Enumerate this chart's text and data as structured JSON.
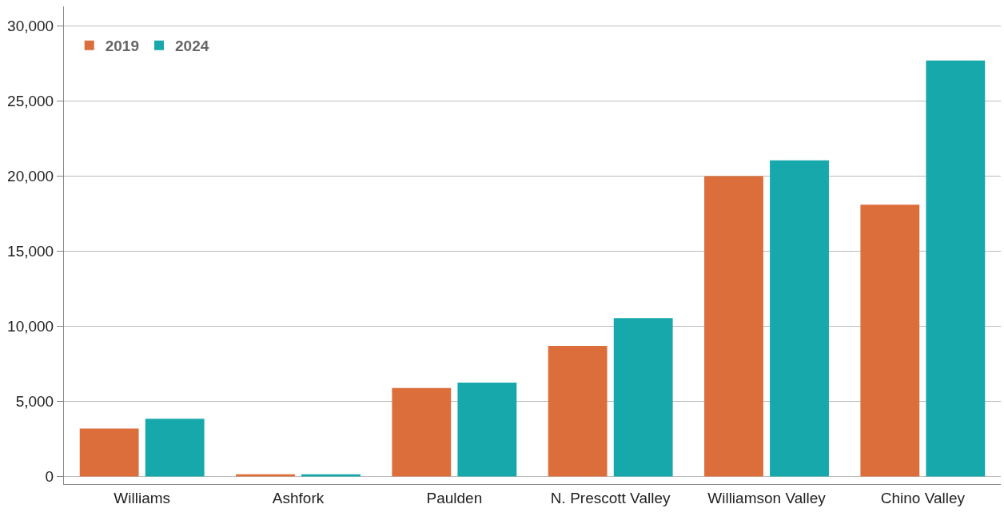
{
  "chart_data": {
    "type": "bar",
    "categories": [
      "Williams",
      "Ashfork",
      "Paulden",
      "N. Prescott Valley",
      "Williamson Valley",
      "Chino Valley"
    ],
    "series": [
      {
        "name": "2019",
        "color": "#dc6e3c",
        "values": [
          3200,
          150,
          5900,
          8700,
          20000,
          18100
        ]
      },
      {
        "name": "2024",
        "color": "#17a8ab",
        "values": [
          3850,
          150,
          6250,
          10550,
          21050,
          27700
        ]
      }
    ],
    "ylim": [
      -500,
      31300
    ],
    "yticks": [
      {
        "value": 0,
        "label": "0"
      },
      {
        "value": 5000,
        "label": "5,000"
      },
      {
        "value": 10000,
        "label": "10,000"
      },
      {
        "value": 15000,
        "label": "15,000"
      },
      {
        "value": 20000,
        "label": "20,000"
      },
      {
        "value": 25000,
        "label": "25,000"
      },
      {
        "value": 30000,
        "label": "30,000"
      }
    ],
    "grid": "y",
    "legend": "top left"
  }
}
